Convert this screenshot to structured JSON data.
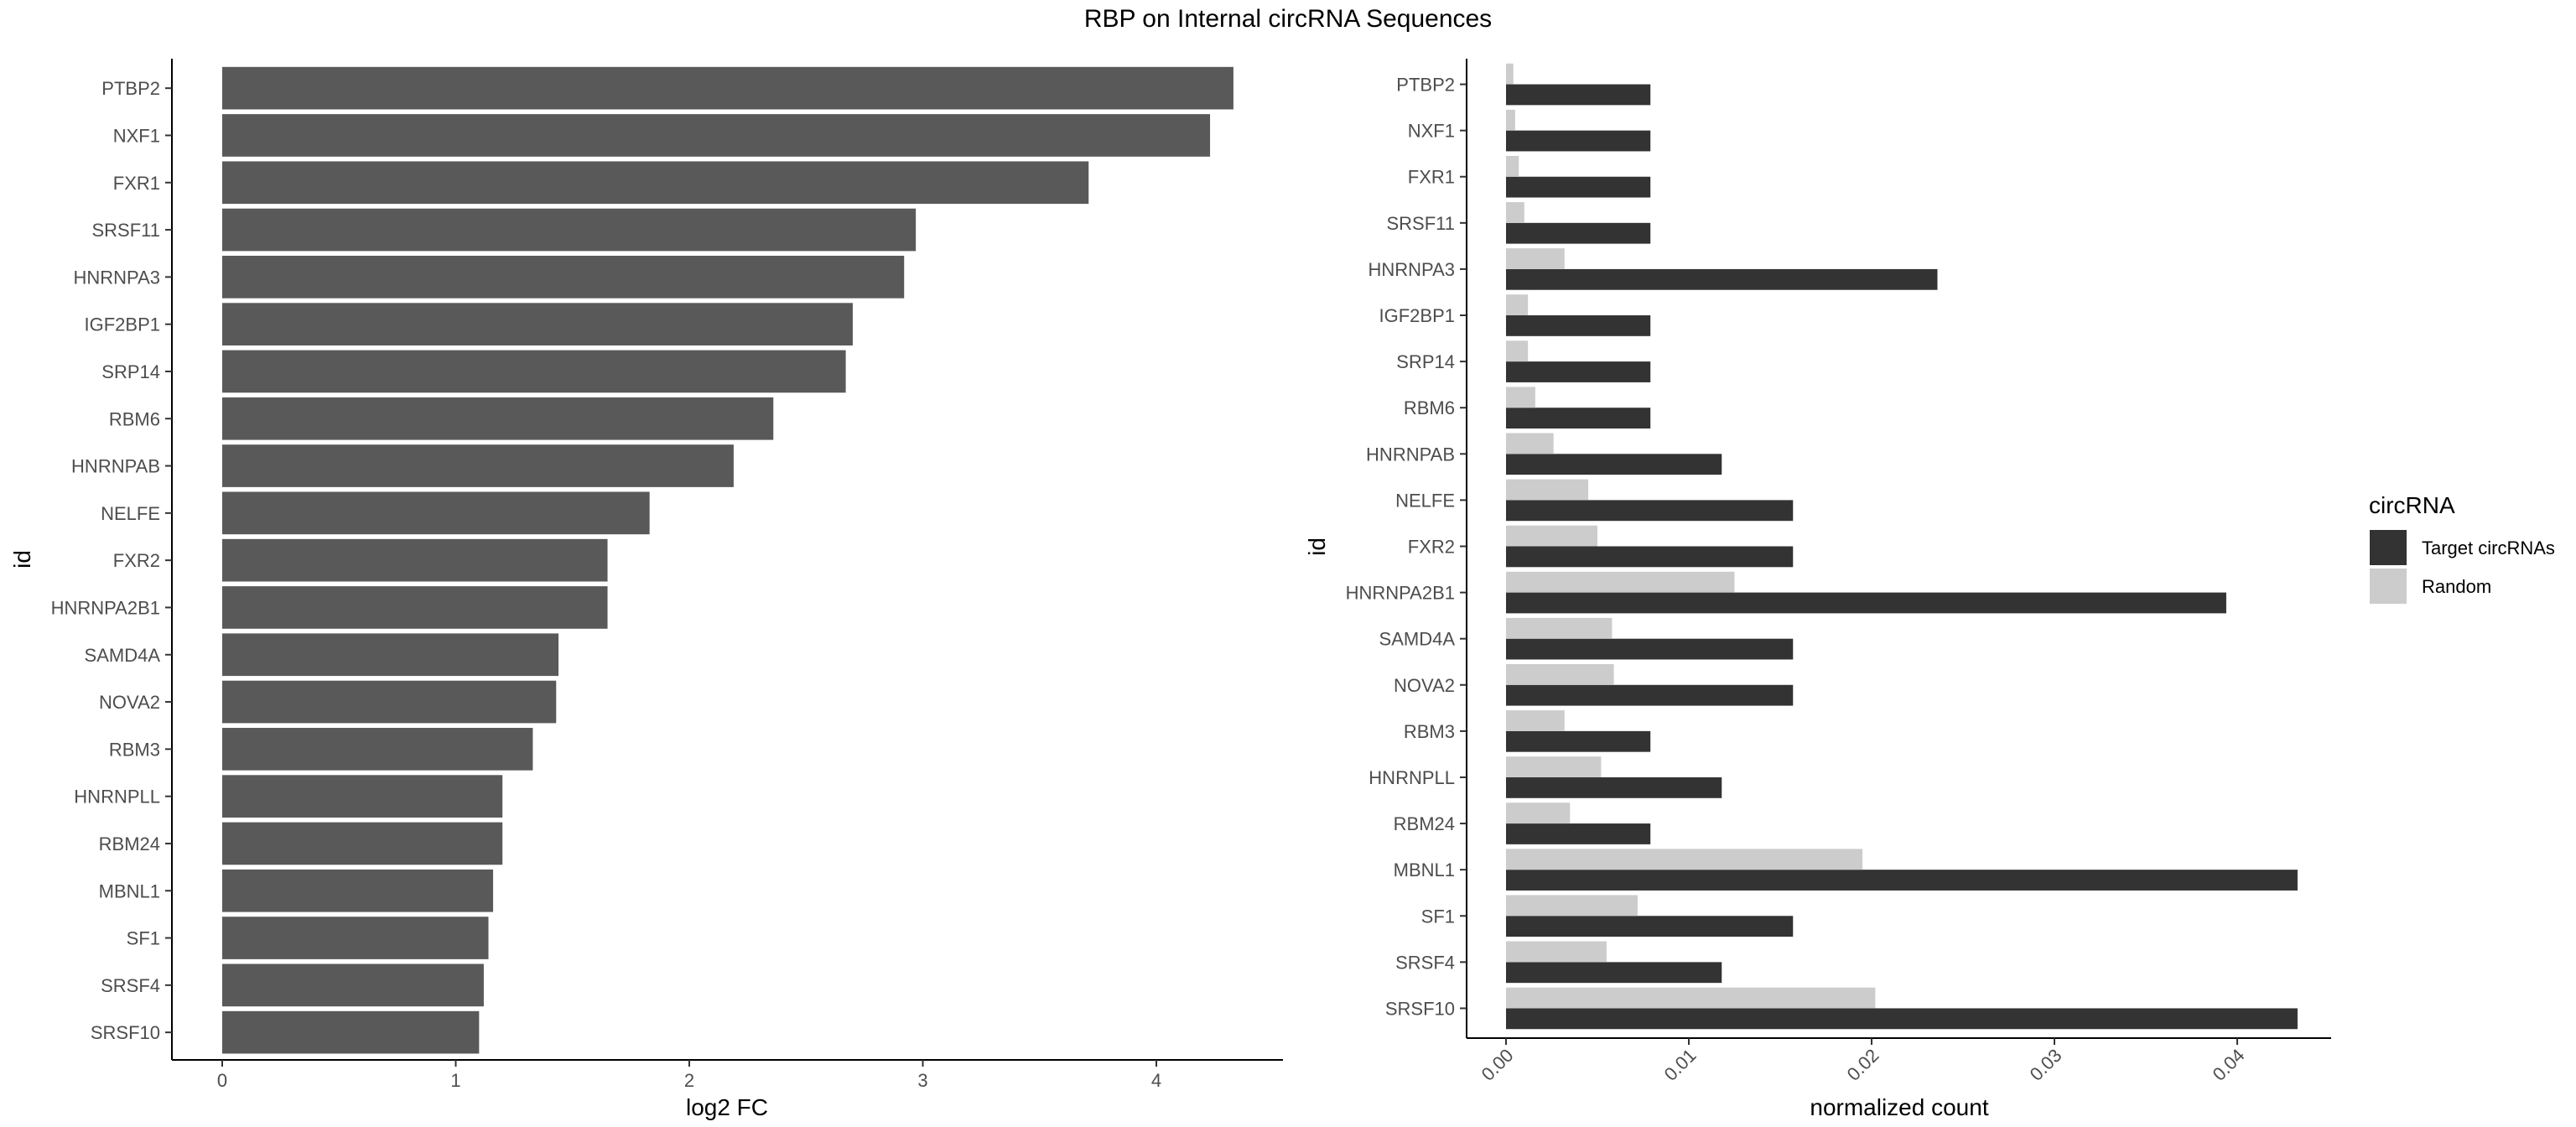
{
  "title": "RBP on Internal circRNA Sequences",
  "chart_data": [
    {
      "type": "bar",
      "orientation": "horizontal",
      "xlabel": "log2 FC",
      "ylabel": "id",
      "xlim": [
        0,
        4.5
      ],
      "xticks": [
        "0",
        "1",
        "2",
        "3",
        "4"
      ],
      "grid": false,
      "categories": [
        "PTBP2",
        "NXF1",
        "FXR1",
        "SRSF11",
        "HNRNPA3",
        "IGF2BP1",
        "SRP14",
        "RBM6",
        "HNRNPAB",
        "NELFE",
        "FXR2",
        "HNRNPA2B1",
        "SAMD4A",
        "NOVA2",
        "RBM3",
        "HNRNPLL",
        "RBM24",
        "MBNL1",
        "SF1",
        "SRSF4",
        "SRSF10"
      ],
      "values": [
        4.33,
        4.23,
        3.71,
        2.97,
        2.92,
        2.7,
        2.67,
        2.36,
        2.19,
        1.83,
        1.65,
        1.65,
        1.44,
        1.43,
        1.33,
        1.2,
        1.2,
        1.16,
        1.14,
        1.12,
        1.1
      ],
      "color": "#595959"
    },
    {
      "type": "bar",
      "orientation": "horizontal",
      "xlabel": "normalized count",
      "ylabel": "id",
      "xlim": [
        0,
        0.045
      ],
      "xticks": [
        "0.00",
        "0.01",
        "0.02",
        "0.03",
        "0.04"
      ],
      "grid": false,
      "legend": {
        "title": "circRNA",
        "position": "right"
      },
      "categories": [
        "PTBP2",
        "NXF1",
        "FXR1",
        "SRSF11",
        "HNRNPA3",
        "IGF2BP1",
        "SRP14",
        "RBM6",
        "HNRNPAB",
        "NELFE",
        "FXR2",
        "HNRNPA2B1",
        "SAMD4A",
        "NOVA2",
        "RBM3",
        "HNRNPLL",
        "RBM24",
        "MBNL1",
        "SF1",
        "SRSF4",
        "SRSF10"
      ],
      "series": [
        {
          "name": "Target circRNAs",
          "color": "#333333",
          "values": [
            0.0079,
            0.0079,
            0.0079,
            0.0079,
            0.0236,
            0.0079,
            0.0079,
            0.0079,
            0.0118,
            0.0157,
            0.0157,
            0.0394,
            0.0157,
            0.0157,
            0.0079,
            0.0118,
            0.0079,
            0.0433,
            0.0157,
            0.0118,
            0.0433
          ]
        },
        {
          "name": "Random",
          "color": "#cccccc",
          "values": [
            0.0004,
            0.0005,
            0.0007,
            0.001,
            0.0032,
            0.0012,
            0.0012,
            0.0016,
            0.0026,
            0.0045,
            0.005,
            0.0125,
            0.0058,
            0.0059,
            0.0032,
            0.0052,
            0.0035,
            0.0195,
            0.0072,
            0.0055,
            0.0202
          ]
        }
      ]
    }
  ]
}
